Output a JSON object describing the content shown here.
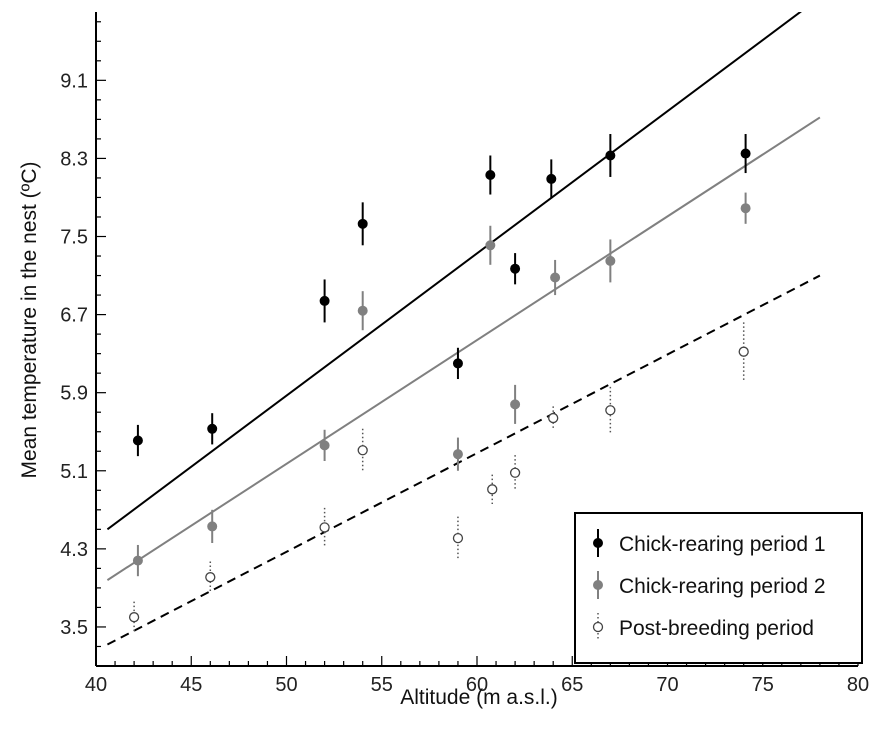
{
  "chart_data": {
    "type": "scatter",
    "xlabel": "Altitude (m a.s.l.)",
    "ylabel": "Mean temperature in the nest (ºC)",
    "xlim": [
      40,
      80
    ],
    "ylim": [
      3.1,
      9.8
    ],
    "xticks": [
      40,
      45,
      50,
      55,
      60,
      65,
      70,
      75,
      80
    ],
    "yticks": [
      3.5,
      4.3,
      5.1,
      5.9,
      6.7,
      7.5,
      8.3,
      9.1
    ],
    "ytick_labels": [
      "3.5",
      "4.3",
      "5.1",
      "5.9",
      "6.7",
      "7.5",
      "8.3",
      "9.1"
    ],
    "legend_position": "bottom-right",
    "series": [
      {
        "name": "Chick-rearing period 1",
        "color": "#000000",
        "marker": "filled-circle",
        "errorbar": "solid",
        "fit_line": {
          "x": [
            40.6,
            78
          ],
          "y": [
            4.5,
            9.95
          ],
          "style": "solid",
          "color": "#000000"
        },
        "points": [
          {
            "x": 42.2,
            "y": 5.41,
            "err": 0.16
          },
          {
            "x": 46.1,
            "y": 5.53,
            "err": 0.16
          },
          {
            "x": 52.0,
            "y": 6.84,
            "err": 0.22
          },
          {
            "x": 54.0,
            "y": 7.63,
            "err": 0.22
          },
          {
            "x": 59.0,
            "y": 6.2,
            "err": 0.16
          },
          {
            "x": 60.7,
            "y": 8.13,
            "err": 0.2
          },
          {
            "x": 62.0,
            "y": 7.17,
            "err": 0.16
          },
          {
            "x": 63.9,
            "y": 8.09,
            "err": 0.2
          },
          {
            "x": 67.0,
            "y": 8.33,
            "err": 0.22
          },
          {
            "x": 74.1,
            "y": 8.35,
            "err": 0.2
          }
        ]
      },
      {
        "name": "Chick-rearing period 2",
        "color": "#808080",
        "marker": "filled-circle",
        "errorbar": "solid",
        "fit_line": {
          "x": [
            40.6,
            78
          ],
          "y": [
            3.98,
            8.72
          ],
          "style": "solid",
          "color": "#808080"
        },
        "points": [
          {
            "x": 42.2,
            "y": 4.18,
            "err": 0.16
          },
          {
            "x": 46.1,
            "y": 4.53,
            "err": 0.17
          },
          {
            "x": 52.0,
            "y": 5.36,
            "err": 0.16
          },
          {
            "x": 54.0,
            "y": 6.74,
            "err": 0.2
          },
          {
            "x": 59.0,
            "y": 5.27,
            "err": 0.17
          },
          {
            "x": 60.7,
            "y": 7.41,
            "err": 0.2
          },
          {
            "x": 62.0,
            "y": 5.78,
            "err": 0.2
          },
          {
            "x": 64.1,
            "y": 7.08,
            "err": 0.18
          },
          {
            "x": 67.0,
            "y": 7.25,
            "err": 0.22
          },
          {
            "x": 74.1,
            "y": 7.79,
            "err": 0.16
          }
        ]
      },
      {
        "name": "Post-breeding period",
        "color": "#444444",
        "marker": "open-circle",
        "errorbar": "dotted",
        "fit_line": {
          "x": [
            40.6,
            78
          ],
          "y": [
            3.32,
            7.1
          ],
          "style": "dashed",
          "color": "#000000"
        },
        "points": [
          {
            "x": 42.0,
            "y": 3.6,
            "err": 0.16
          },
          {
            "x": 46.0,
            "y": 4.01,
            "err": 0.16
          },
          {
            "x": 52.0,
            "y": 4.52,
            "err": 0.2
          },
          {
            "x": 54.0,
            "y": 5.31,
            "err": 0.22
          },
          {
            "x": 59.0,
            "y": 4.41,
            "err": 0.22
          },
          {
            "x": 60.8,
            "y": 4.91,
            "err": 0.15
          },
          {
            "x": 62.0,
            "y": 5.08,
            "err": 0.18
          },
          {
            "x": 64.0,
            "y": 5.64,
            "err": 0.12
          },
          {
            "x": 67.0,
            "y": 5.72,
            "err": 0.24
          },
          {
            "x": 74.0,
            "y": 6.32,
            "err": 0.3
          }
        ]
      }
    ]
  }
}
